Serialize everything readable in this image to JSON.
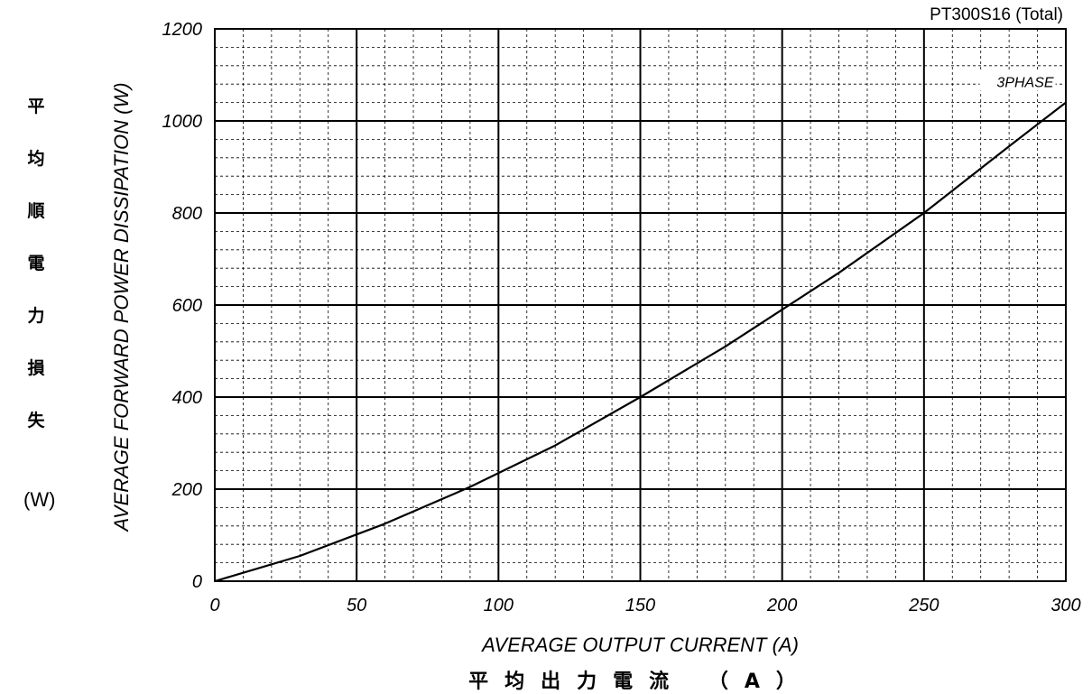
{
  "chart_data": {
    "type": "line",
    "title": "PT300S16 (Total)",
    "xlabel": "AVERAGE OUTPUT CURRENT (A)",
    "xlabel_jp": "平均出力電流 （A）",
    "ylabel": "AVERAGE FORWARD POWER DISSIPATION (W)",
    "ylabel_jp_chars": [
      "平",
      "均",
      "順",
      "電",
      "力",
      "損",
      "失"
    ],
    "ylabel_jp_unit": "(W)",
    "xlim": [
      0,
      300
    ],
    "ylim": [
      0,
      1200
    ],
    "x_ticks": [
      0,
      50,
      100,
      150,
      200,
      250,
      300
    ],
    "y_ticks": [
      0,
      200,
      400,
      600,
      800,
      1000,
      1200
    ],
    "grid": true,
    "series": [
      {
        "name": "3PHASE",
        "x": [
          0,
          30,
          60,
          90,
          120,
          150,
          180,
          200,
          220,
          250,
          280,
          300
        ],
        "y": [
          0,
          55,
          125,
          205,
          295,
          400,
          510,
          590,
          670,
          800,
          945,
          1040
        ]
      }
    ],
    "annotations": [
      {
        "text": "3PHASE",
        "x": 297,
        "y": 1040
      }
    ]
  }
}
